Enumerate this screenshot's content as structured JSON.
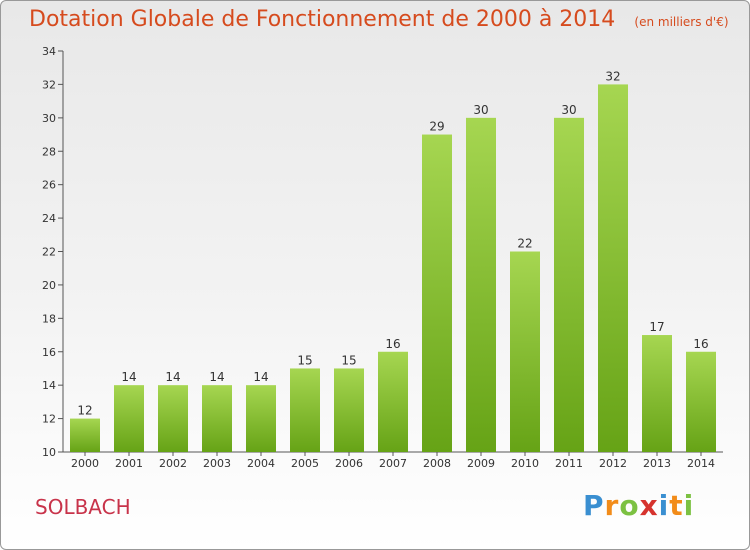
{
  "title": "Dotation Globale de Fonctionnement de 2000 à 2014",
  "unit": "(en milliers d'€)",
  "commune": "SOLBACH",
  "logo": {
    "letters": [
      "P",
      "r",
      "o",
      "x",
      "i",
      "t",
      "i"
    ],
    "colors": [
      "#3a8fd1",
      "#f28c1a",
      "#7cc142",
      "#d6332e",
      "#3a8fd1",
      "#f28c1a",
      "#7cc142"
    ],
    "alt": "Proxiti"
  },
  "colors": {
    "bar_light": "#a6d651",
    "bar_dark": "#66a316",
    "title": "#d64b1e",
    "commune": "#c8334a"
  },
  "chart_data": {
    "type": "bar",
    "categories": [
      "2000",
      "2001",
      "2002",
      "2003",
      "2004",
      "2005",
      "2006",
      "2007",
      "2008",
      "2009",
      "2010",
      "2011",
      "2012",
      "2013",
      "2014"
    ],
    "values": [
      12,
      14,
      14,
      14,
      14,
      15,
      15,
      16,
      29,
      30,
      22,
      30,
      32,
      17,
      16
    ],
    "data_labels": [
      "12",
      "14",
      "14",
      "14",
      "14",
      "15",
      "15",
      "16",
      "29",
      "30",
      "22",
      "30",
      "32",
      "17",
      "16"
    ],
    "ylim": [
      10,
      34
    ],
    "yticks": [
      10,
      12,
      14,
      16,
      18,
      20,
      22,
      24,
      26,
      28,
      30,
      32,
      34
    ],
    "grid": false,
    "title": "Dotation Globale de Fonctionnement de 2000 à 2014",
    "xlabel": "",
    "ylabel": ""
  }
}
